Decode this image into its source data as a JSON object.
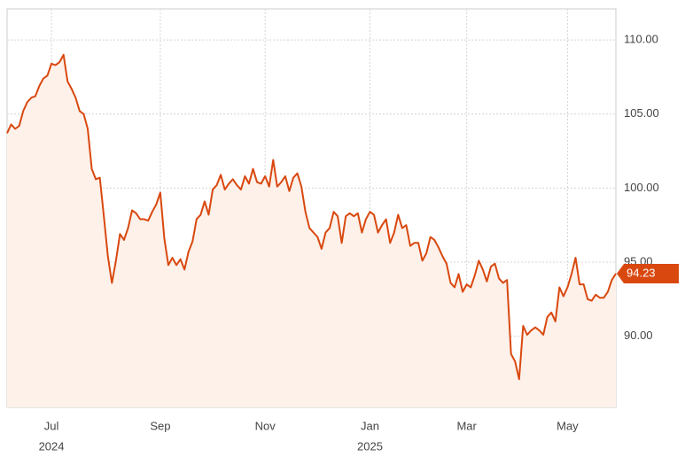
{
  "chart_data": {
    "type": "line",
    "series": [
      {
        "color": "#d9480f",
        "fill": "#fdf1ea",
        "values": [
          103.7,
          104.3,
          104.0,
          104.2,
          105.2,
          105.8,
          106.1,
          106.2,
          106.9,
          107.4,
          107.6,
          108.4,
          108.3,
          108.5,
          109.0,
          107.2,
          106.7,
          106.1,
          105.2,
          105.0,
          104.0,
          101.3,
          100.6,
          100.7,
          98.1,
          95.4,
          93.6,
          95.1,
          96.9,
          96.5,
          97.3,
          98.5,
          98.3,
          97.9,
          97.9,
          97.8,
          98.4,
          98.9,
          99.7,
          96.6,
          94.8,
          95.3,
          94.8,
          95.2,
          94.5,
          95.7,
          96.4,
          97.9,
          98.2,
          99.1,
          98.2,
          99.9,
          100.2,
          100.9,
          99.9,
          100.3,
          100.6,
          100.2,
          99.9,
          100.8,
          100.3,
          101.3,
          100.4,
          100.3,
          100.8,
          100.1,
          101.9,
          100.1,
          100.4,
          100.8,
          99.8,
          100.7,
          101.0,
          100.1,
          98.4,
          97.3,
          97.0,
          96.7,
          95.9,
          97.0,
          97.3,
          98.4,
          98.1,
          96.3,
          98.1,
          98.3,
          98.1,
          98.3,
          97.0,
          97.9,
          98.4,
          98.2,
          97.0,
          97.5,
          97.9,
          96.3,
          97.0,
          98.2,
          97.3,
          97.5,
          96.1,
          96.3,
          96.3,
          95.1,
          95.6,
          96.7,
          96.5,
          96.0,
          95.4,
          94.9,
          93.6,
          93.3,
          94.2,
          93.0,
          93.5,
          93.3,
          94.1,
          95.1,
          94.5,
          93.7,
          94.7,
          94.9,
          93.9,
          93.6,
          93.8,
          88.8,
          88.3,
          87.1,
          90.7,
          90.1,
          90.4,
          90.6,
          90.4,
          90.1,
          91.3,
          91.6,
          91.0,
          93.3,
          92.7,
          93.3,
          94.2,
          95.3,
          93.5,
          93.5,
          92.5,
          92.4,
          92.8,
          92.6,
          92.6,
          93.0,
          93.8,
          94.23
        ]
      }
    ],
    "current": {
      "value": 94.23,
      "label": "94.23"
    },
    "xlim": [
      0,
      151
    ],
    "xticks": [
      {
        "value": 11,
        "label": "Jul"
      },
      {
        "value": 38,
        "label": "Sep"
      },
      {
        "value": 64,
        "label": "Nov"
      },
      {
        "value": 90,
        "label": "Jan"
      },
      {
        "value": 114,
        "label": "Mar"
      },
      {
        "value": 139,
        "label": "May"
      }
    ],
    "year_labels": [
      {
        "value": 11,
        "label": "2024"
      },
      {
        "value": 90,
        "label": "2025"
      }
    ],
    "ylim": [
      85.2,
      112.1
    ],
    "yticks": [
      {
        "value": 90,
        "label": "90.00"
      },
      {
        "value": 95,
        "label": "95.00"
      },
      {
        "value": 100,
        "label": "100.00"
      },
      {
        "value": 105,
        "label": "105.00"
      },
      {
        "value": 110,
        "label": "110.00"
      }
    ],
    "grid": true
  }
}
